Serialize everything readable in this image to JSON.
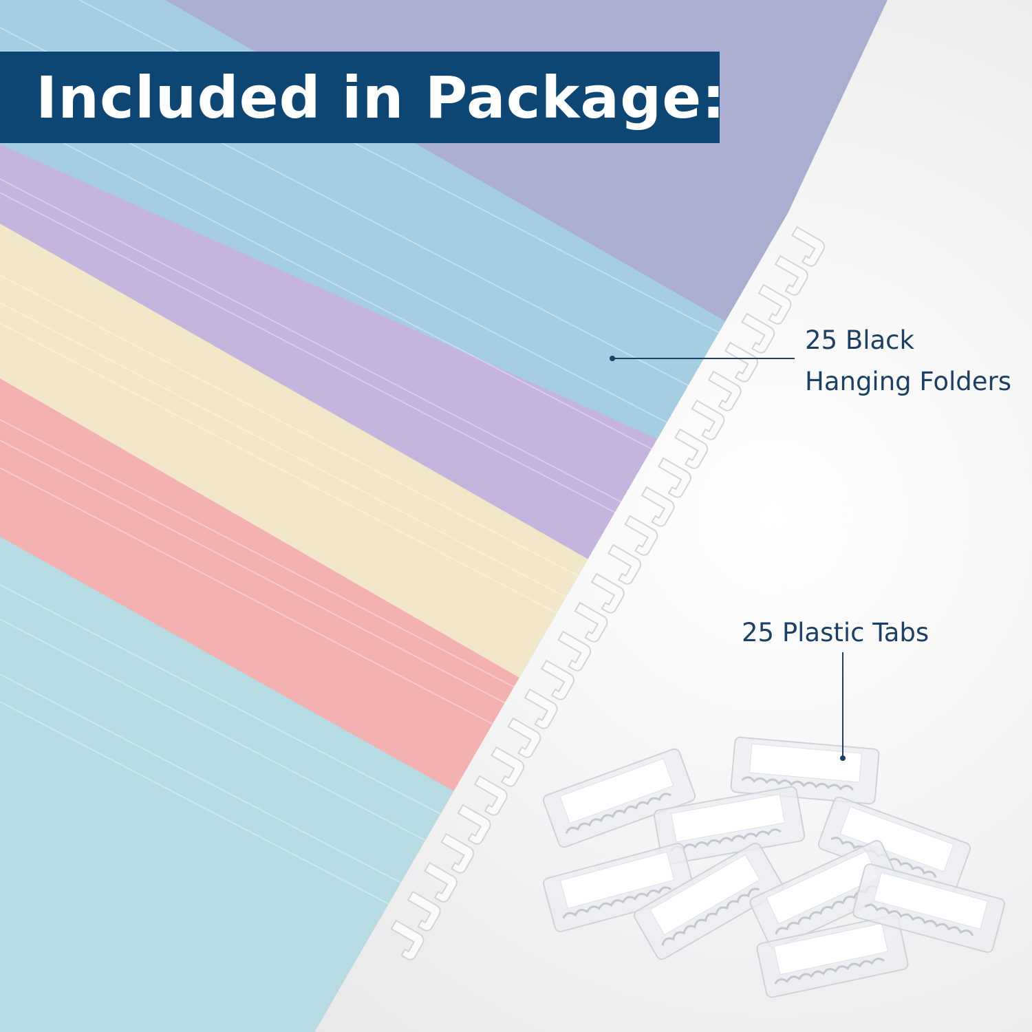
{
  "header": {
    "title": "Included in Package:"
  },
  "callouts": {
    "folders_line1": "25 Black",
    "folders_line2": "Hanging Folders",
    "tabs": "25 Plastic Tabs"
  },
  "colors": {
    "banner": "#0e4673",
    "label_text": "#1d3f63",
    "folder_gray_purple": "#aaafd2",
    "folder_blue": "#a6cee2",
    "folder_purple": "#c4b4de",
    "folder_yellow": "#f2e7c8",
    "folder_pink": "#f4b1b1",
    "folder_teal": "#b6dbe3"
  }
}
